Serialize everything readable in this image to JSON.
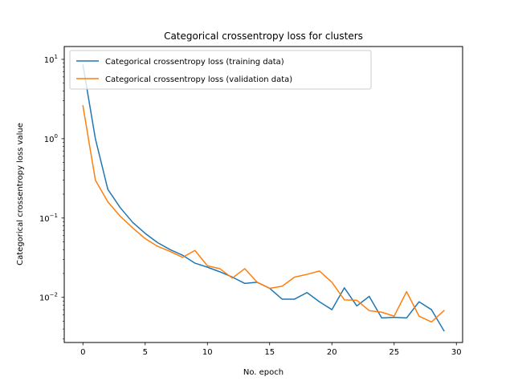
{
  "chart_data": {
    "type": "line",
    "title": "Categorical crossentropy loss for clusters",
    "xlabel": "No. epoch",
    "ylabel": "Categorical crossentropy loss value",
    "yscale": "log",
    "xlim": [
      -1.5,
      30.5
    ],
    "ylim": [
      0.0027,
      14.5
    ],
    "xticks": [
      0,
      5,
      10,
      15,
      20,
      25,
      30
    ],
    "yticks": [
      {
        "value": 0.01,
        "base": "10",
        "exp": "−2"
      },
      {
        "value": 0.1,
        "base": "10",
        "exp": "−1"
      },
      {
        "value": 1,
        "base": "10",
        "exp": "0"
      },
      {
        "value": 10,
        "base": "10",
        "exp": "1"
      }
    ],
    "legend_position": "top-left",
    "grid": false,
    "x": [
      0,
      1,
      2,
      3,
      4,
      5,
      6,
      7,
      8,
      9,
      10,
      11,
      12,
      13,
      14,
      15,
      16,
      17,
      18,
      19,
      20,
      21,
      22,
      23,
      24,
      25,
      26,
      27,
      28,
      29
    ],
    "series": [
      {
        "name": "Categorical crossentropy loss (training data)",
        "color": "#1f77b4",
        "values": [
          8.5,
          1.0,
          0.23,
          0.135,
          0.088,
          0.064,
          0.049,
          0.04,
          0.034,
          0.027,
          0.024,
          0.021,
          0.018,
          0.015,
          0.0155,
          0.013,
          0.0095,
          0.0095,
          0.0115,
          0.0088,
          0.007,
          0.0132,
          0.0078,
          0.0103,
          0.0055,
          0.0056,
          0.0055,
          0.0088,
          0.007,
          0.0038
        ]
      },
      {
        "name": "Categorical crossentropy loss (validation data)",
        "color": "#ff7f0e",
        "values": [
          2.6,
          0.3,
          0.16,
          0.105,
          0.075,
          0.055,
          0.044,
          0.038,
          0.032,
          0.039,
          0.025,
          0.023,
          0.0175,
          0.023,
          0.0155,
          0.013,
          0.0138,
          0.018,
          0.0195,
          0.0215,
          0.0155,
          0.0093,
          0.0092,
          0.0068,
          0.0065,
          0.0058,
          0.0118,
          0.0058,
          0.0049,
          0.0068
        ]
      }
    ]
  }
}
